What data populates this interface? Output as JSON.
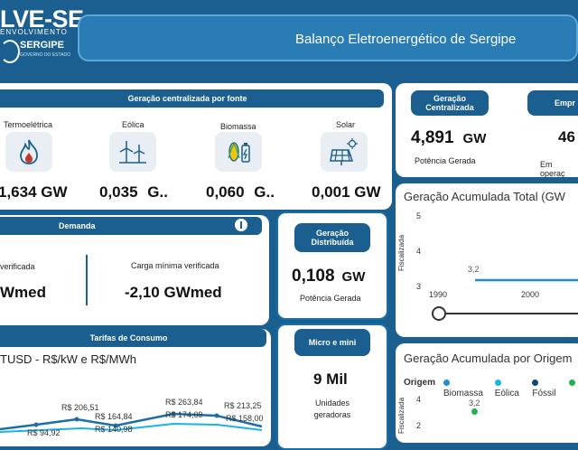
{
  "header": {
    "logo_text": "LVE-SE",
    "logo_sub": "ENVOLVIMENTO",
    "brand": "SERGIPE",
    "brand_small": "GOVERNO DO ESTADO",
    "title": "Balanço Eletroenergético de Sergipe"
  },
  "centralizada": {
    "heading": "Geração centralizada por fonte",
    "sources": [
      {
        "label": "Termoelétrica",
        "value": "1,634 GW",
        "icon": "flame-icon"
      },
      {
        "label": "Eólica",
        "value": "0,035",
        "unit": "G..",
        "icon": "wind-turbine-icon"
      },
      {
        "label": "Biomassa",
        "value": "0,060",
        "unit": "G..",
        "icon": "biomass-icon"
      },
      {
        "label": "Solar",
        "value": "0,001 GW",
        "icon": "solar-panel-icon"
      }
    ]
  },
  "demanda": {
    "heading": "Demanda",
    "left_label": "verificada",
    "left_value": "Wmed",
    "right_label": "Carga mínima verificada",
    "right_value": "-2,10 GWmed"
  },
  "distribuida": {
    "heading": "Geração Distribuída",
    "value": "0,108",
    "unit": "GW",
    "sub": "Potência Gerada"
  },
  "micro": {
    "heading": "Micro e mini",
    "value": "9 Mil",
    "sub": "Unidades geradoras"
  },
  "tarifas": {
    "heading": "Tarifas de Consumo",
    "chart_title": "TUSD - R$/kW e R$/MWh",
    "labels": [
      "R$ 206,51",
      "R$ 94,92",
      "R$ 164,84",
      "R$ 140,98",
      "R$ 263,84",
      "R$ 174,09",
      "R$ 213,25",
      "R$ 158,00"
    ]
  },
  "gen_central": {
    "heading": "Geração Centralizada",
    "value": "4,891",
    "unit": "GW",
    "sub": "Potência Gerada"
  },
  "empr": {
    "heading": "Empr",
    "value": "46",
    "sub": "Em operaç"
  },
  "acum_total": {
    "title": "Geração Acumulada Total (GW",
    "ylabel": "Fiscalizada",
    "yticks": [
      "5",
      "4",
      "3"
    ],
    "xticks": [
      "1990",
      "2000"
    ],
    "point_label": "3,2"
  },
  "acum_origem": {
    "title": "Geração Acumulada por Origem",
    "legend_title": "Origem",
    "legend": [
      {
        "name": "Biomassa",
        "color": "#1f8fd0"
      },
      {
        "name": "Eólica",
        "color": "#19b3e6"
      },
      {
        "name": "Fóssil",
        "color": "#0c4a7a"
      },
      {
        "name": "",
        "color": "#22b14c"
      }
    ],
    "ylabel": "Fiscalizada",
    "yticks": [
      "4",
      "2"
    ],
    "point_label": "3,2"
  },
  "chart_data": [
    {
      "type": "line",
      "title": "Geração Acumulada Total (GW",
      "ylabel": "Fiscalizada",
      "x": [
        1990,
        2000
      ],
      "ylim": [
        3,
        5
      ],
      "series": [
        {
          "values": [
            3.2,
            3.2
          ]
        }
      ]
    },
    {
      "type": "scatter",
      "title": "Geração Acumulada por Origem",
      "ylabel": "Fiscalizada",
      "ylim": [
        2,
        4
      ],
      "series": [
        {
          "name": "Fóssil",
          "values": [
            3.2
          ]
        }
      ]
    }
  ]
}
